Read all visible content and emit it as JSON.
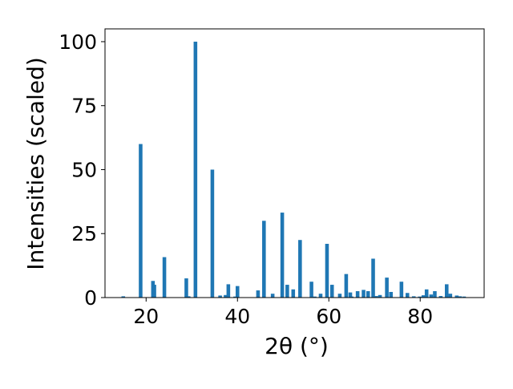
{
  "chart_data": {
    "type": "bar",
    "xlabel": "2θ (°)",
    "ylabel": "Intensities (scaled)",
    "xlim": [
      11,
      94
    ],
    "ylim": [
      0,
      105
    ],
    "x_ticks": [
      20,
      40,
      60,
      80
    ],
    "y_ticks": [
      0,
      25,
      50,
      75,
      100
    ],
    "grid": false,
    "bar_color": "#1f77b4",
    "bar_width": 0.8,
    "series": [
      {
        "x": [
          15.0,
          18.8,
          21.5,
          21.8,
          24.0,
          28.8,
          29.3,
          30.8,
          34.5,
          36.2,
          37.4,
          38.0,
          39.5,
          40.0,
          44.5,
          45.8,
          47.7,
          49.8,
          50.9,
          52.2,
          53.7,
          56.2,
          56.9,
          58.2,
          59.6,
          60.7,
          62.4,
          63.8,
          64.7,
          65.0,
          66.3,
          67.6,
          68.6,
          69.7,
          70.4,
          71.2,
          72.7,
          73.6,
          75.9,
          77.2,
          78.6,
          79.9,
          80.7,
          81.4,
          82.4,
          83.2,
          84.5,
          85.8,
          86.6,
          88.0,
          88.7,
          89.6
        ],
        "y": [
          0.5,
          60,
          6.5,
          5,
          15.8,
          7.5,
          0.5,
          100,
          50,
          0.8,
          1,
          5.2,
          0.4,
          4.5,
          2.8,
          30,
          1.5,
          33.2,
          5,
          3.2,
          22.5,
          6.2,
          0.4,
          1.5,
          21,
          5,
          1.5,
          9.2,
          2,
          0.4,
          2.5,
          3,
          2.5,
          15.2,
          0.6,
          1,
          7.8,
          2.2,
          6.2,
          1.8,
          0.5,
          0.4,
          0.9,
          3.2,
          1.2,
          2.5,
          0.6,
          5.2,
          1.5,
          0.8,
          0.5,
          0.4
        ]
      }
    ]
  }
}
